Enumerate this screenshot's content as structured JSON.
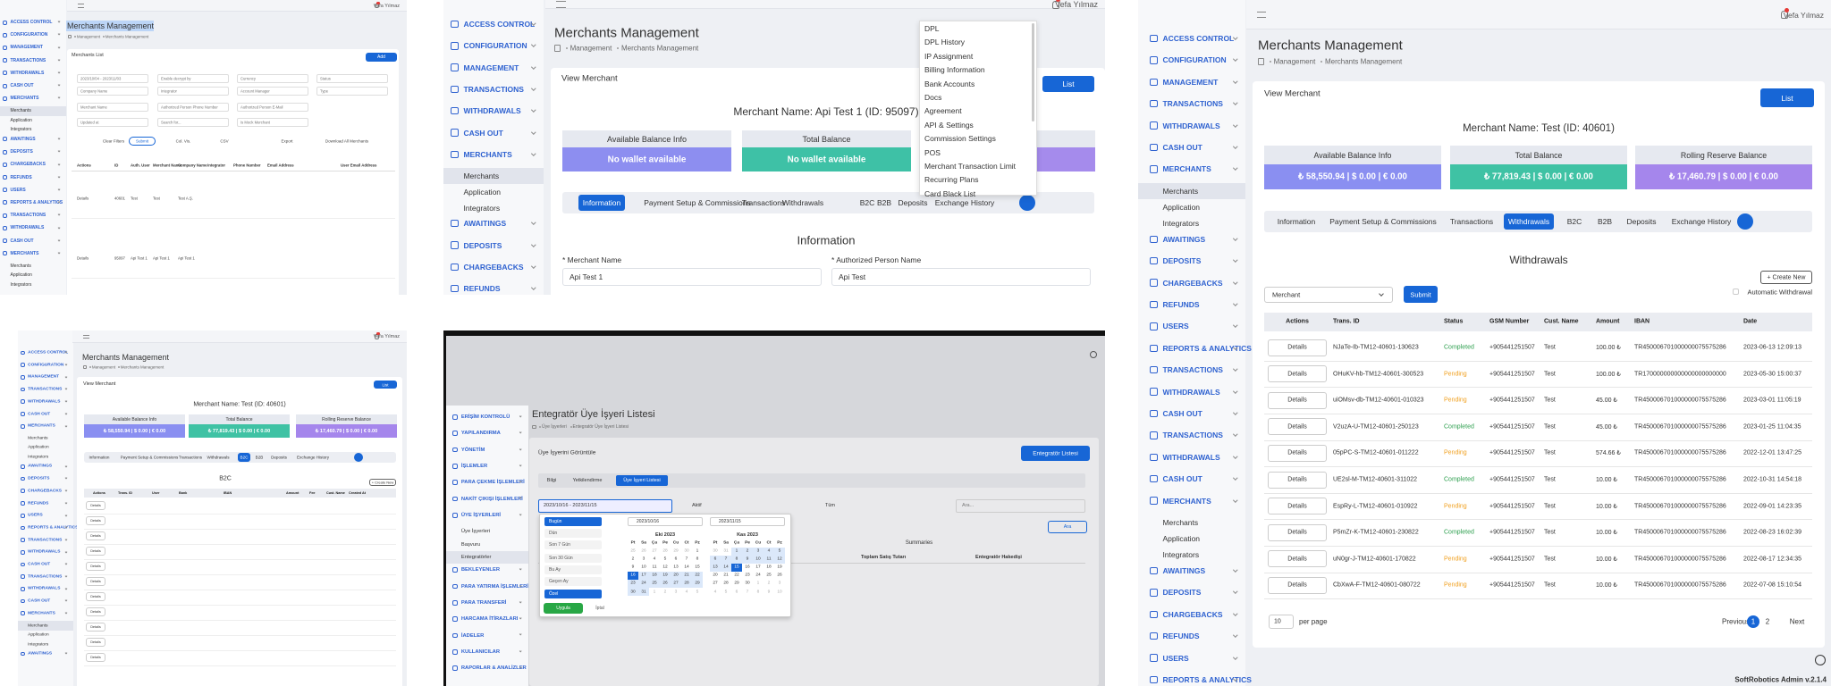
{
  "panel_a": {
    "user": "Vefa Yılmaz",
    "sidebar": [
      {
        "label": "ACCESS CONTROL"
      },
      {
        "label": "CONFIGURATION"
      },
      {
        "label": "MANAGEMENT"
      },
      {
        "label": "TRANSACTIONS"
      },
      {
        "label": "WITHDRAWALS"
      },
      {
        "label": "CASH OUT"
      },
      {
        "label": "MERCHANTS",
        "children": [
          "Merchants",
          "Application",
          "Integrators"
        ]
      },
      {
        "label": "AWAITINGS"
      },
      {
        "label": "DEPOSITS"
      },
      {
        "label": "CHARGEBACKS"
      },
      {
        "label": "REFUNDS"
      },
      {
        "label": "USERS"
      },
      {
        "label": "REPORTS & ANALYTICS"
      },
      {
        "label": "TRANSACTIONS"
      },
      {
        "label": "WITHDRAWALS"
      },
      {
        "label": "CASH OUT"
      },
      {
        "label": "MERCHANTS",
        "children": [
          "Merchants",
          "Application",
          "Integrators"
        ]
      }
    ],
    "title": "Merchants Management",
    "breadcrumb": [
      "Management",
      "Merchants Management"
    ],
    "card_title": "Merchants List",
    "add_button": "Add",
    "filters": [
      [
        "2023/10/04 - 2023/11/03",
        "Enable decrypt by",
        "Currency",
        "Status"
      ],
      [
        "Company Name",
        "Integrator",
        "Account Manager",
        "Type"
      ],
      [
        "Merchant Name",
        "Authorized Person Phone Number",
        "Authorized Person E-Mail"
      ],
      [
        "Updated at",
        "Search for...",
        "Is Mock Merchant"
      ]
    ],
    "buttons": [
      "Clear Filters",
      "Submit",
      "Col. Vis.",
      "CSV",
      "Export",
      "Download All Merchants"
    ],
    "table": {
      "headers": [
        "Actions",
        "ID",
        "Auth. User",
        "Merchant Name",
        "Company Name",
        "Integrator",
        "Phone Number",
        "Email Address",
        "User Email Address"
      ],
      "rows": [
        [
          "Details",
          "40601",
          "Test",
          "Test",
          "Test A.Ş."
        ],
        [
          "Details",
          "95097",
          "Api Test 1",
          "Api Test 1",
          "Api Test 1"
        ]
      ]
    }
  },
  "panel_b": {
    "user": "Vefa Yılmaz",
    "sidebar": [
      {
        "label": "ACCESS CONTROL"
      },
      {
        "label": "CONFIGURATION"
      },
      {
        "label": "MANAGEMENT"
      },
      {
        "label": "TRANSACTIONS"
      },
      {
        "label": "WITHDRAWALS"
      },
      {
        "label": "CASH OUT"
      },
      {
        "label": "MERCHANTS",
        "children": [
          "Merchants",
          "Application",
          "Integrators"
        ]
      },
      {
        "label": "AWAITINGS"
      },
      {
        "label": "DEPOSITS"
      },
      {
        "label": "CHARGEBACKS"
      },
      {
        "label": "REFUNDS"
      }
    ],
    "title": "Merchants Management",
    "breadcrumb": [
      "Management",
      "Merchants Management"
    ],
    "card_title": "View Merchant",
    "list_button": "List",
    "merchant_name": "Merchant Name: Api Test 1 (ID: 95097)",
    "balances": [
      {
        "title": "Available Balance Info",
        "value": "No wallet available"
      },
      {
        "title": "Total Balance",
        "value": "No wallet available"
      }
    ],
    "tabs": [
      "Information",
      "Payment Setup & Commissions",
      "Transactions",
      "Withdrawals",
      "B2C",
      "B2B",
      "Deposits",
      "Exchange History"
    ],
    "section_title": "Information",
    "fields": [
      {
        "label": "* Merchant Name",
        "value": "Api Test 1"
      },
      {
        "label": "* Authorized Person Name",
        "value": "Api Test"
      }
    ],
    "dropdown": [
      "DPL",
      "DPL History",
      "IP Assignment",
      "Billing Information",
      "Bank Accounts",
      "Docs",
      "Agreement",
      "API & Settings",
      "Commission Settings",
      "POS",
      "Merchant Transaction Limit",
      "Recurring Plans",
      "Card Black List"
    ]
  },
  "panel_c": {
    "user": "Vefa Yılmaz",
    "sidebar": [
      {
        "label": "ACCESS CONTROL"
      },
      {
        "label": "CONFIGURATION"
      },
      {
        "label": "MANAGEMENT"
      },
      {
        "label": "TRANSACTIONS"
      },
      {
        "label": "WITHDRAWALS"
      },
      {
        "label": "CASH OUT"
      },
      {
        "label": "MERCHANTS",
        "children": [
          "Merchants",
          "Application",
          "Integrators"
        ]
      },
      {
        "label": "AWAITINGS"
      },
      {
        "label": "DEPOSITS"
      },
      {
        "label": "CHARGEBACKS"
      },
      {
        "label": "REFUNDS"
      },
      {
        "label": "USERS"
      },
      {
        "label": "REPORTS & ANALYTICS"
      },
      {
        "label": "TRANSACTIONS"
      },
      {
        "label": "WITHDRAWALS"
      },
      {
        "label": "CASH OUT"
      },
      {
        "label": "TRANSACTIONS"
      },
      {
        "label": "WITHDRAWALS"
      },
      {
        "label": "CASH OUT"
      },
      {
        "label": "MERCHANTS",
        "children": [
          "Merchants",
          "Application",
          "Integrators"
        ]
      },
      {
        "label": "AWAITINGS"
      },
      {
        "label": "DEPOSITS"
      },
      {
        "label": "CHARGEBACKS"
      },
      {
        "label": "REFUNDS"
      },
      {
        "label": "USERS"
      },
      {
        "label": "REPORTS & ANALYTICS"
      }
    ],
    "title": "Merchants Management",
    "breadcrumb": [
      "Management",
      "Merchants Management"
    ],
    "card_title": "View Merchant",
    "list_button": "List",
    "merchant_name": "Merchant Name: Test (ID: 40601)",
    "balances": [
      {
        "title": "Available Balance Info",
        "value": "₺ 58,550.94 | $ 0.00 | € 0.00"
      },
      {
        "title": "Total Balance",
        "value": "₺ 77,819.43 | $ 0.00 | € 0.00"
      },
      {
        "title": "Rolling Reserve Balance",
        "value": "₺ 17,460.79 | $ 0.00 | € 0.00"
      }
    ],
    "tabs": [
      "Information",
      "Payment Setup & Commissions",
      "Transactions",
      "Withdrawals",
      "B2C",
      "B2B",
      "Deposits",
      "Exchange History"
    ],
    "section_title": "Withdrawals",
    "create_button": "+ Create New",
    "merchant_select": "Merchant",
    "submit_button": "Submit",
    "auto_withdrawal": "Automatic Withdrawal",
    "table": {
      "headers": [
        "Actions",
        "Trans. ID",
        "Status",
        "GSM Number",
        "Cust. Name",
        "Amount",
        "IBAN",
        "Date"
      ],
      "rows": [
        [
          "Details",
          "NJaTe-Ib-TM12-40601-130623",
          "Completed",
          "+905441251507",
          "Test",
          "100.00 ₺",
          "TR450006701000000075575286",
          "2023-06-13 12:09:13"
        ],
        [
          "Details",
          "OHuKV-hb-TM12-40601-300523",
          "Pending",
          "+905441251507",
          "Test",
          "100.00 ₺",
          "TR170000000000000000000000",
          "2023-05-30 15:00:37"
        ],
        [
          "Details",
          "uiOMsv-db-TM12-40601-010323",
          "Pending",
          "+905441251507",
          "Test",
          "45.00 ₺",
          "TR450006701000000075575286",
          "2023-03-01 11:05:19"
        ],
        [
          "Details",
          "V2uzA-U-TM12-40601-250123",
          "Completed",
          "+905441251507",
          "Test",
          "45.00 ₺",
          "TR450006701000000075575286",
          "2023-01-25 11:04:35"
        ],
        [
          "Details",
          "05pPC-S-TM12-40601-011222",
          "Pending",
          "+905441251507",
          "Test",
          "574.66 ₺",
          "TR450006701000000075575286",
          "2022-12-01 13:47:25"
        ],
        [
          "Details",
          "UE2sl-M-TM12-40601-311022",
          "Completed",
          "+905441251507",
          "Test",
          "10.00 ₺",
          "TR450006701000000075575286",
          "2022-10-31 14:54:18"
        ],
        [
          "Details",
          "EspRy-L-TM12-40601-010922",
          "Pending",
          "+905441251507",
          "Test",
          "10.00 ₺",
          "TR450006701000000075575286",
          "2022-09-01 14:23:35"
        ],
        [
          "Details",
          "P5mZr-K-TM12-40601-230822",
          "Completed",
          "+905441251507",
          "Test",
          "10.00 ₺",
          "TR450006701000000075575286",
          "2022-08-23 16:02:39"
        ],
        [
          "Details",
          "uN0gr-J-TM12-40601-170822",
          "Pending",
          "+905441251507",
          "Test",
          "10.00 ₺",
          "TR450006701000000075575286",
          "2022-08-17 12:34:35"
        ],
        [
          "Details",
          "CbXwA-F-TM12-40601-080722",
          "Pending",
          "+905441251507",
          "Test",
          "10.00 ₺",
          "TR450006701000000075575286",
          "2022-07-08 15:10:54"
        ]
      ]
    },
    "page_size": "10",
    "per_page": "per page",
    "pagination": [
      "Previous",
      "1",
      "2",
      "Next"
    ],
    "footer": "SoftRobotics Admin v.2.1.4"
  },
  "panel_d": {
    "user": "Vefa Yılmaz",
    "sidebar": [
      {
        "label": "ACCESS CONTROL"
      },
      {
        "label": "CONFIGURATION"
      },
      {
        "label": "MANAGEMENT"
      },
      {
        "label": "TRANSACTIONS"
      },
      {
        "label": "WITHDRAWALS"
      },
      {
        "label": "CASH OUT"
      },
      {
        "label": "MERCHANTS",
        "children": [
          "Merchants",
          "Application",
          "Integrators"
        ]
      },
      {
        "label": "AWAITINGS"
      },
      {
        "label": "DEPOSITS"
      },
      {
        "label": "CHARGEBACKS"
      },
      {
        "label": "REFUNDS"
      },
      {
        "label": "USERS"
      },
      {
        "label": "REPORTS & ANALYTICS"
      },
      {
        "label": "TRANSACTIONS"
      },
      {
        "label": "WITHDRAWALS"
      },
      {
        "label": "CASH OUT"
      },
      {
        "label": "TRANSACTIONS"
      },
      {
        "label": "WITHDRAWALS"
      },
      {
        "label": "CASH OUT"
      },
      {
        "label": "MERCHANTS",
        "children": [
          "Merchants",
          "Application",
          "Integrators"
        ]
      },
      {
        "label": "AWAITINGS"
      }
    ],
    "title": "Merchants Management",
    "breadcrumb": [
      "Management",
      "Merchants Management"
    ],
    "card_title": "View Merchant",
    "list_button": "List",
    "merchant_name": "Merchant Name: Test (ID: 40601)",
    "balances": [
      {
        "title": "Available Balance Info",
        "value": "₺ 58,550.94 | $ 0.00 | € 0.00"
      },
      {
        "title": "Total Balance",
        "value": "₺ 77,819.43 | $ 0.00 | € 0.00"
      },
      {
        "title": "Rolling Reserve Balance",
        "value": "₺ 17,460.79 | $ 0.00 | € 0.00"
      }
    ],
    "tabs": [
      "Information",
      "Payment Setup & Commissions",
      "Transactions",
      "Withdrawals",
      "B2C",
      "B2B",
      "Deposits",
      "Exchange History"
    ],
    "section_title": "B2C",
    "create_button": "+ Create New",
    "table_headers": [
      "Actions",
      "Trans. ID",
      "User",
      "Bank",
      "IBAN",
      "Amount",
      "Fee",
      "Cust. Name",
      "Created At"
    ],
    "row_buttons": [
      "Details",
      "Details",
      "Details",
      "Details",
      "Details",
      "Details",
      "Details",
      "Details",
      "Details",
      "Details",
      "Details"
    ]
  },
  "panel_e": {
    "sidebar": [
      {
        "label": "ERİŞİM KONTROLÜ"
      },
      {
        "label": "YAPILANDIRMA"
      },
      {
        "label": "YÖNETİM"
      },
      {
        "label": "İŞLEMLER"
      },
      {
        "label": "PARA ÇEKME İŞLEMLERİ"
      },
      {
        "label": "NAKİT ÇIKIŞI İŞLEMLERİ"
      },
      {
        "label": "ÜYE İŞYERLERİ",
        "children": [
          "Üye İşyerleri",
          "Başvuru",
          "Entegratörler"
        ]
      },
      {
        "label": "BEKLEYENLER"
      },
      {
        "label": "PARA YATIRMA İŞLEMLERİ"
      },
      {
        "label": "PARA TRANSFERİ"
      },
      {
        "label": "HARCAMA İTİRAZLARI"
      },
      {
        "label": "İADELER"
      },
      {
        "label": "KULLANICILAR"
      },
      {
        "label": "RAPORLAR & ANALİZLER"
      }
    ],
    "title": "Entegratör Üye İşyeri Listesi",
    "breadcrumb": [
      "Üye İşyerleri",
      "Entegratör Üye İşyeri Listesi"
    ],
    "card_title": "Üye İşyerini Görüntüle",
    "list_button": "Entegratör Listesi",
    "tabs": [
      "Bilgi",
      "Yetkilendirme",
      "Üye İşyeri Listesi"
    ],
    "date_range": "2023/10/16 - 2023/11/15",
    "status_select": "Aktif",
    "type_select": "Tüm",
    "search_placeholder": "Ara...",
    "search_button": "Ara",
    "summaries": "Summaries",
    "table_headers": [
      "Toplam Satış Tutarı",
      "Entegratör Hakedişi"
    ],
    "datepicker": {
      "ranges": [
        "Bugün",
        "Dün",
        "Son 7 Gün",
        "Son 30 Gün",
        "Bu Ay",
        "Geçen Ay",
        "Özel"
      ],
      "apply": "Uygula",
      "cancel": "İptal",
      "inputs": [
        "2023/10/16",
        "2023/11/15"
      ],
      "weekdays": [
        "Pt",
        "Sa",
        "Ça",
        "Pe",
        "Cu",
        "Ct",
        "Pz"
      ],
      "calendars": [
        {
          "month": "Eki 2023",
          "days": [
            [
              25,
              26,
              27,
              28,
              29,
              30,
              1
            ],
            [
              2,
              3,
              4,
              5,
              6,
              7,
              8
            ],
            [
              9,
              10,
              11,
              12,
              13,
              14,
              15
            ],
            [
              16,
              17,
              18,
              19,
              20,
              21,
              22
            ],
            [
              23,
              24,
              25,
              26,
              27,
              28,
              29
            ],
            [
              30,
              31,
              1,
              2,
              3,
              4,
              5
            ]
          ]
        },
        {
          "month": "Kas 2023",
          "days": [
            [
              30,
              31,
              1,
              2,
              3,
              4,
              5
            ],
            [
              6,
              7,
              8,
              9,
              10,
              11,
              12
            ],
            [
              13,
              14,
              15,
              16,
              17,
              18,
              19
            ],
            [
              20,
              21,
              22,
              23,
              24,
              25,
              26
            ],
            [
              27,
              28,
              29,
              30,
              1,
              2,
              3
            ],
            [
              4,
              5,
              6,
              7,
              8,
              9,
              10
            ]
          ]
        }
      ]
    }
  }
}
